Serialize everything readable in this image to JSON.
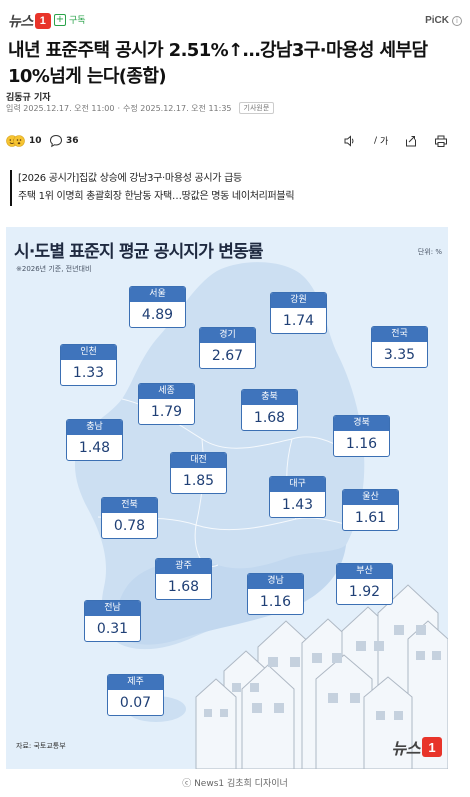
{
  "header": {
    "logo_text": "뉴스",
    "logo_badge": "1",
    "subscribe_label": "구독",
    "pick_label": "PiCK"
  },
  "article": {
    "headline": "내년 표준주택 공시가 2.51%↑…강남3구·마용성 세부담 10%넘게 는다(종합)",
    "author": "김동규 기자",
    "published": "입력 2025.12.17. 오전 11:00",
    "separator": "·",
    "modified": "수정 2025.12.17. 오전 11:35",
    "original_button": "기사원문"
  },
  "actions": {
    "reaction_count": "10",
    "comment_count": "36",
    "font_label": "가"
  },
  "summary": {
    "line1": "[2026 공시가]집값 상승에 강남3구·마용성 공시가 급등",
    "line2": "주택 1위 이명희 총괄회장 한남동 자택…땅값은 명동 네이처리퍼블릭"
  },
  "infographic": {
    "title": "시·도별 표준지 평균 공시지가 변동률",
    "subtitle": "※2026년 기준, 전년대비",
    "unit": "단위: %",
    "source": "자료: 국토교통부",
    "logo_text": "뉴스",
    "logo_badge": "1",
    "regions": [
      {
        "name": "서울",
        "value": "4.89"
      },
      {
        "name": "강원",
        "value": "1.74"
      },
      {
        "name": "경기",
        "value": "2.67"
      },
      {
        "name": "전국",
        "value": "3.35"
      },
      {
        "name": "인천",
        "value": "1.33"
      },
      {
        "name": "세종",
        "value": "1.79"
      },
      {
        "name": "충북",
        "value": "1.68"
      },
      {
        "name": "충남",
        "value": "1.48"
      },
      {
        "name": "경북",
        "value": "1.16"
      },
      {
        "name": "대전",
        "value": "1.85"
      },
      {
        "name": "대구",
        "value": "1.43"
      },
      {
        "name": "울산",
        "value": "1.61"
      },
      {
        "name": "전북",
        "value": "0.78"
      },
      {
        "name": "광주",
        "value": "1.68"
      },
      {
        "name": "경남",
        "value": "1.16"
      },
      {
        "name": "부산",
        "value": "1.92"
      },
      {
        "name": "전남",
        "value": "0.31"
      },
      {
        "name": "제주",
        "value": "0.07"
      }
    ]
  },
  "caption": "ⓒ News1 김초희 디자이너",
  "colors": {
    "accent": "#e8342a",
    "subscribe": "#2aa34a",
    "map_bg": "#e3effa",
    "region_header": "#3f74bc",
    "region_value": "#1f3f75"
  }
}
